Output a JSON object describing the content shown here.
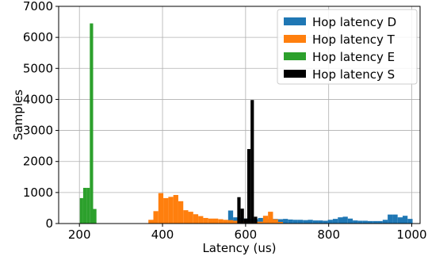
{
  "chart_data": {
    "type": "bar",
    "subtype": "histogram",
    "xlabel": "Latency (us)",
    "ylabel": "Samples",
    "xlim": [
      150,
      1020
    ],
    "ylim": [
      0,
      7000
    ],
    "xticks": [
      200,
      400,
      600,
      800,
      1000
    ],
    "yticks": [
      0,
      1000,
      2000,
      3000,
      4000,
      5000,
      6000,
      7000
    ],
    "grid": true,
    "legend_position": "top-right",
    "series": [
      {
        "name": "Hop latency D",
        "color": "#1f77b4",
        "bin_width": 12,
        "bins": [
          {
            "x": 558,
            "y": 420
          },
          {
            "x": 570,
            "y": 200
          },
          {
            "x": 582,
            "y": 180
          },
          {
            "x": 594,
            "y": 160
          },
          {
            "x": 606,
            "y": 150
          },
          {
            "x": 618,
            "y": 140
          },
          {
            "x": 630,
            "y": 180
          },
          {
            "x": 642,
            "y": 150
          },
          {
            "x": 654,
            "y": 140
          },
          {
            "x": 666,
            "y": 150
          },
          {
            "x": 678,
            "y": 140
          },
          {
            "x": 690,
            "y": 150
          },
          {
            "x": 702,
            "y": 130
          },
          {
            "x": 714,
            "y": 120
          },
          {
            "x": 726,
            "y": 120
          },
          {
            "x": 738,
            "y": 110
          },
          {
            "x": 750,
            "y": 120
          },
          {
            "x": 762,
            "y": 100
          },
          {
            "x": 774,
            "y": 100
          },
          {
            "x": 786,
            "y": 90
          },
          {
            "x": 798,
            "y": 120
          },
          {
            "x": 810,
            "y": 150
          },
          {
            "x": 822,
            "y": 200
          },
          {
            "x": 834,
            "y": 220
          },
          {
            "x": 846,
            "y": 160
          },
          {
            "x": 858,
            "y": 100
          },
          {
            "x": 870,
            "y": 90
          },
          {
            "x": 882,
            "y": 90
          },
          {
            "x": 894,
            "y": 80
          },
          {
            "x": 906,
            "y": 80
          },
          {
            "x": 918,
            "y": 80
          },
          {
            "x": 930,
            "y": 120
          },
          {
            "x": 942,
            "y": 290
          },
          {
            "x": 954,
            "y": 290
          },
          {
            "x": 966,
            "y": 200
          },
          {
            "x": 978,
            "y": 250
          },
          {
            "x": 990,
            "y": 150
          }
        ]
      },
      {
        "name": "Hop latency T",
        "color": "#ff7f0e",
        "bin_width": 12,
        "bins": [
          {
            "x": 366,
            "y": 120
          },
          {
            "x": 378,
            "y": 400
          },
          {
            "x": 390,
            "y": 980
          },
          {
            "x": 402,
            "y": 820
          },
          {
            "x": 414,
            "y": 860
          },
          {
            "x": 426,
            "y": 920
          },
          {
            "x": 438,
            "y": 720
          },
          {
            "x": 450,
            "y": 430
          },
          {
            "x": 462,
            "y": 380
          },
          {
            "x": 474,
            "y": 300
          },
          {
            "x": 486,
            "y": 240
          },
          {
            "x": 498,
            "y": 180
          },
          {
            "x": 510,
            "y": 160
          },
          {
            "x": 522,
            "y": 160
          },
          {
            "x": 534,
            "y": 140
          },
          {
            "x": 546,
            "y": 120
          },
          {
            "x": 558,
            "y": 110
          },
          {
            "x": 570,
            "y": 90
          },
          {
            "x": 582,
            "y": 80
          },
          {
            "x": 594,
            "y": 80
          },
          {
            "x": 606,
            "y": 60
          },
          {
            "x": 618,
            "y": 60
          },
          {
            "x": 630,
            "y": 60
          },
          {
            "x": 642,
            "y": 250
          },
          {
            "x": 654,
            "y": 380
          },
          {
            "x": 666,
            "y": 140
          },
          {
            "x": 678,
            "y": 50
          }
        ]
      },
      {
        "name": "Hop latency E",
        "color": "#2ca02c",
        "bin_width": 8,
        "bins": [
          {
            "x": 201,
            "y": 820
          },
          {
            "x": 209,
            "y": 1150
          },
          {
            "x": 217,
            "y": 1150
          },
          {
            "x": 225,
            "y": 6450
          },
          {
            "x": 233,
            "y": 470
          }
        ]
      },
      {
        "name": "Hop latency S",
        "color": "#000000",
        "bin_width": 8,
        "bins": [
          {
            "x": 580,
            "y": 850
          },
          {
            "x": 588,
            "y": 480
          },
          {
            "x": 596,
            "y": 160
          },
          {
            "x": 604,
            "y": 2400
          },
          {
            "x": 612,
            "y": 3980
          },
          {
            "x": 620,
            "y": 220
          }
        ]
      }
    ]
  }
}
